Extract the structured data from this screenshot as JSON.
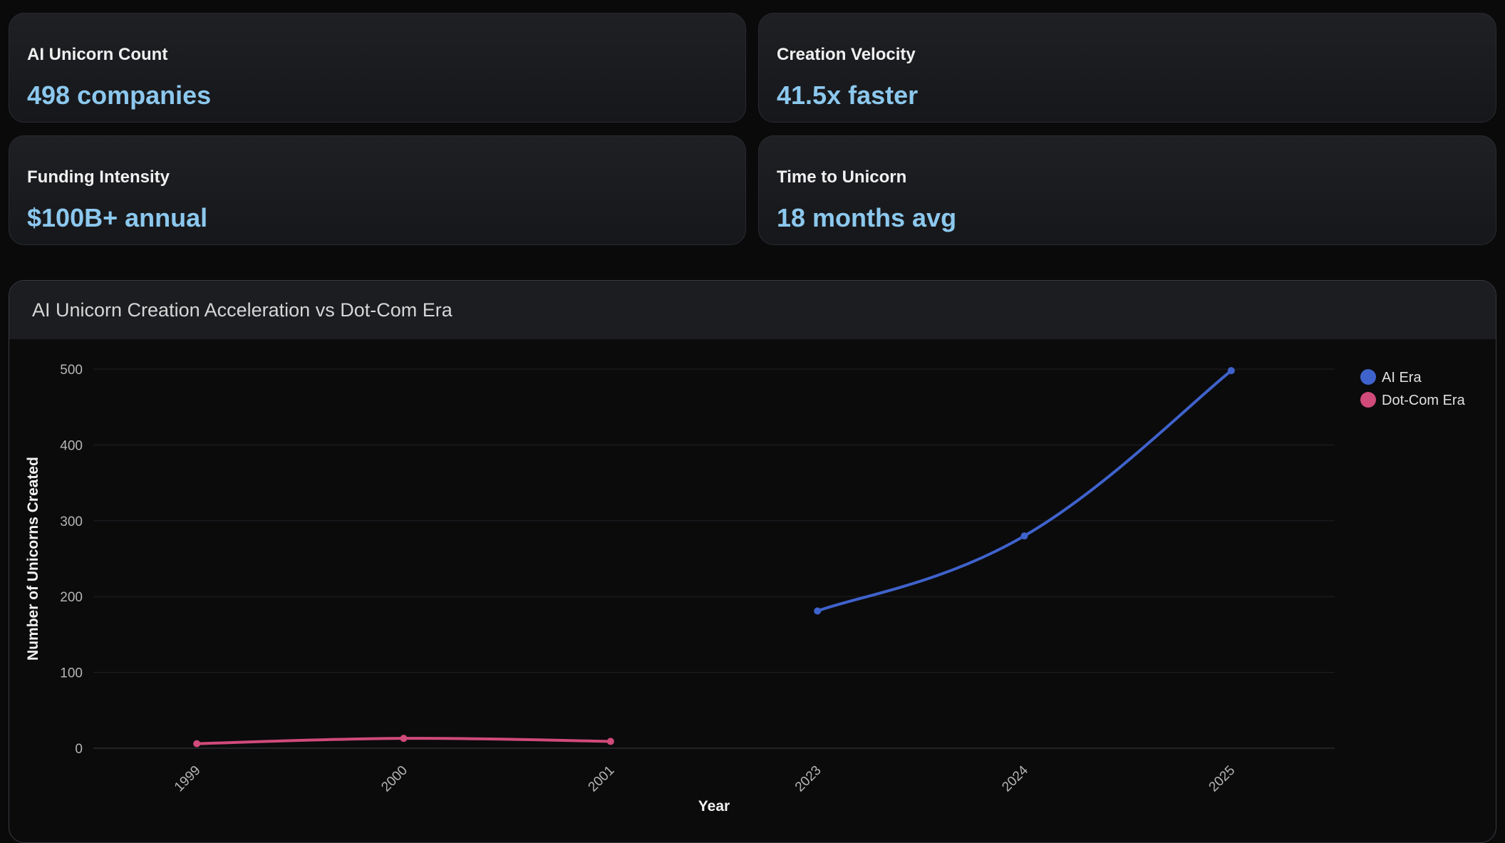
{
  "cards": [
    {
      "label": "AI Unicorn Count",
      "value": "498 companies"
    },
    {
      "label": "Creation Velocity",
      "value": "41.5x faster"
    },
    {
      "label": "Funding Intensity",
      "value": "$100B+ annual"
    },
    {
      "label": "Time to Unicorn",
      "value": "18 months avg"
    }
  ],
  "chart_data": {
    "type": "line",
    "title": "AI Unicorn Creation Acceleration vs Dot-Com Era",
    "xlabel": "Year",
    "ylabel": "Number of Unicorns Created",
    "categories": [
      "1999",
      "2000",
      "2001",
      "2023",
      "2024",
      "2025"
    ],
    "ylim": [
      0,
      500
    ],
    "yticks": [
      0,
      100,
      200,
      300,
      400,
      500
    ],
    "grid": true,
    "legend_position": "top-right",
    "series": [
      {
        "name": "AI Era",
        "color": "#3f63cc",
        "values": [
          null,
          null,
          null,
          181,
          280,
          498
        ]
      },
      {
        "name": "Dot-Com Era",
        "color": "#d04a7a",
        "values": [
          6,
          13,
          9,
          null,
          null,
          null
        ]
      }
    ]
  }
}
